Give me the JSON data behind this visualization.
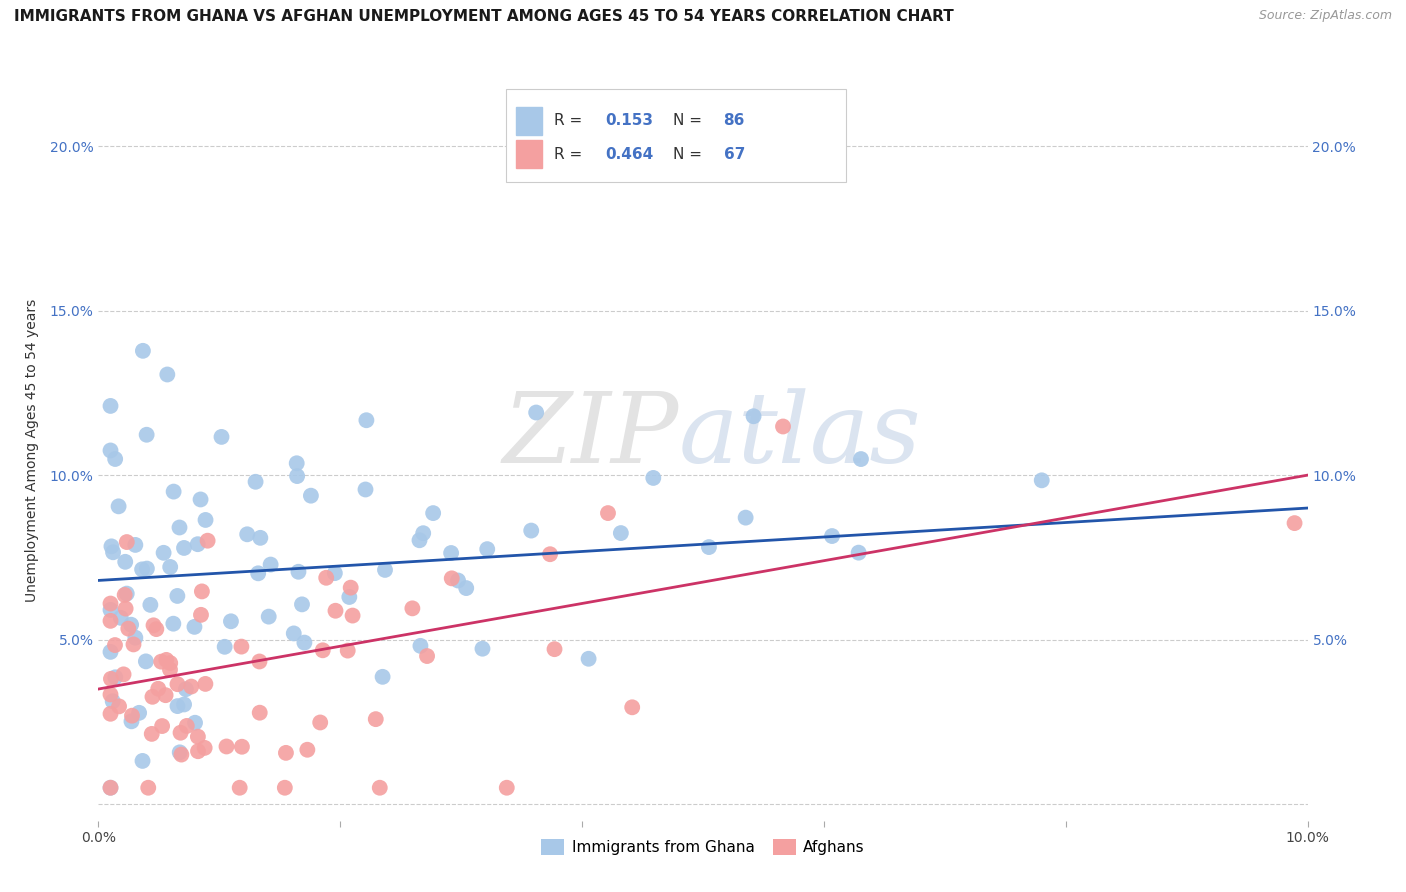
{
  "title": "IMMIGRANTS FROM GHANA VS AFGHAN UNEMPLOYMENT AMONG AGES 45 TO 54 YEARS CORRELATION CHART",
  "source": "Source: ZipAtlas.com",
  "ylabel": "Unemployment Among Ages 45 to 54 years",
  "xlim": [
    0.0,
    0.1
  ],
  "ylim": [
    -0.005,
    0.22
  ],
  "xticks": [
    0.0,
    0.02,
    0.04,
    0.06,
    0.08,
    0.1
  ],
  "yticks": [
    0.0,
    0.05,
    0.1,
    0.15,
    0.2
  ],
  "xticklabels": [
    "0.0%",
    "",
    "",
    "",
    "",
    "10.0%"
  ],
  "yticklabels": [
    "",
    "5.0%",
    "10.0%",
    "15.0%",
    "20.0%"
  ],
  "ghana_color": "#a8c8e8",
  "afghan_color": "#f4a0a0",
  "ghana_line_color": "#2255aa",
  "afghan_line_color": "#cc3366",
  "ghana_R": 0.153,
  "ghana_N": 86,
  "afghan_R": 0.464,
  "afghan_N": 67,
  "legend_label_ghana": "Immigrants from Ghana",
  "legend_label_afghan": "Afghans",
  "watermark_zip": "ZIP",
  "watermark_atlas": "atlas",
  "background_color": "#ffffff",
  "grid_color": "#cccccc",
  "title_fontsize": 11,
  "label_fontsize": 10,
  "tick_fontsize": 10,
  "legend_fontsize": 11,
  "source_fontsize": 9,
  "ghana_line_start_y": 0.068,
  "ghana_line_end_y": 0.09,
  "afghan_line_start_y": 0.035,
  "afghan_line_end_y": 0.1
}
